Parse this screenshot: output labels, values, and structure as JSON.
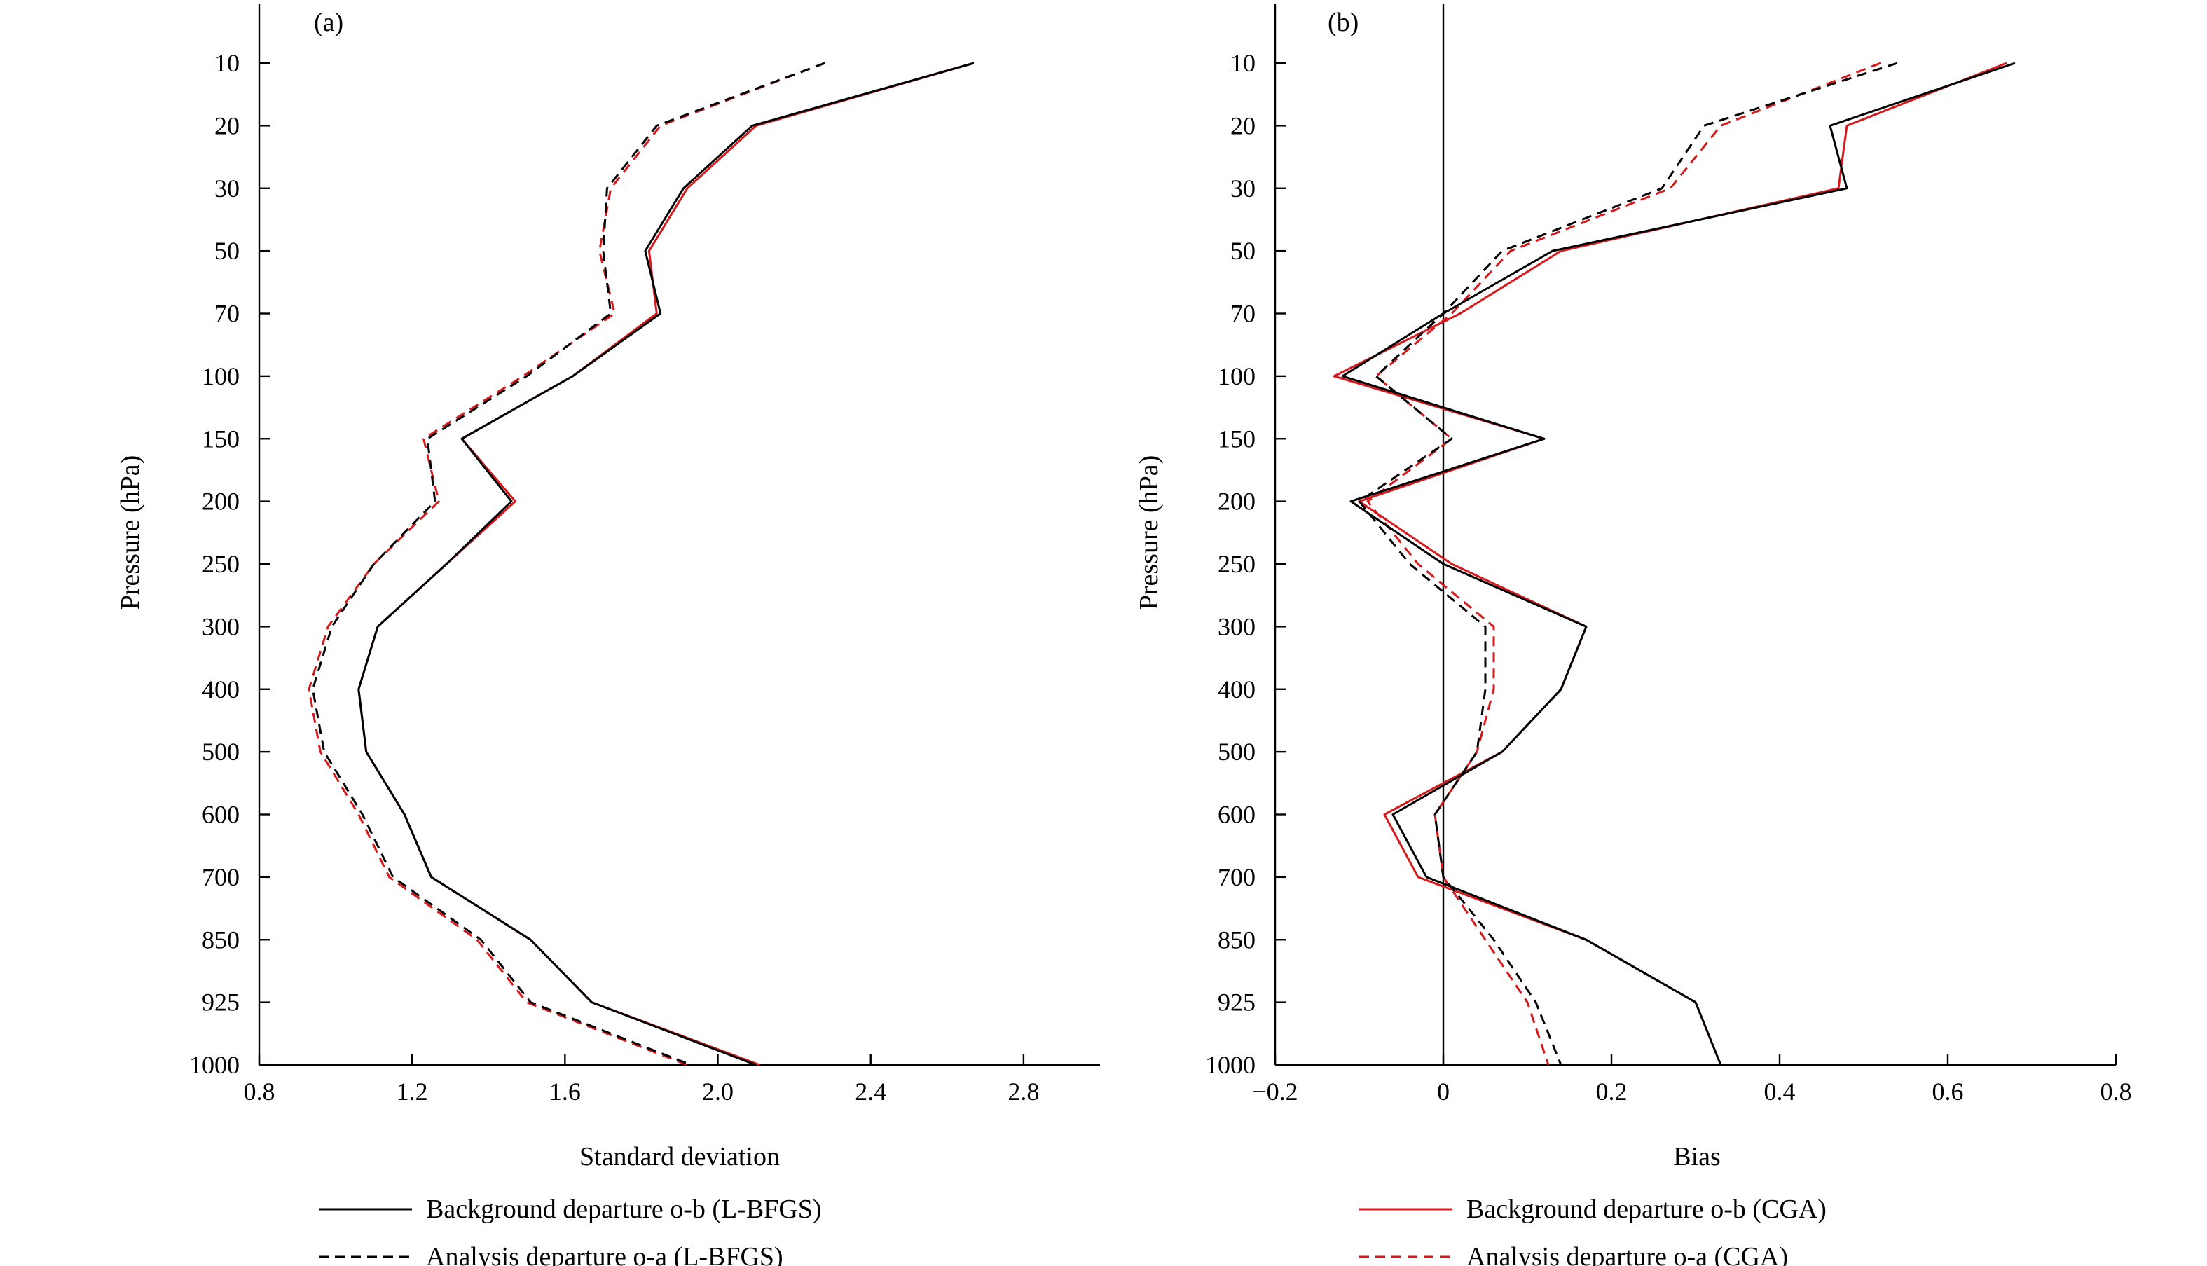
{
  "colors": {
    "lbfgs": "#000000",
    "cga": "#d7191c"
  },
  "legend": [
    {
      "name": "Background departure o-b (L-BFGS)",
      "color": "#000000",
      "dash": false
    },
    {
      "name": "Analysis departure o-a (L-BFGS)",
      "color": "#000000",
      "dash": true
    },
    {
      "name": "Background departure o-b (CGA)",
      "color": "#d7191c",
      "dash": false
    },
    {
      "name": "Analysis departure o-a (CGA)",
      "color": "#d7191c",
      "dash": true
    }
  ],
  "chart_data": [
    {
      "type": "line",
      "panel_label": "(a)",
      "xlabel": "Standard deviation",
      "ylabel": "Pressure (hPa)",
      "xlim": [
        0.8,
        3.0
      ],
      "xticks": [
        "0.8",
        "1.2",
        "1.6",
        "2.0",
        "2.4",
        "2.8"
      ],
      "xtick_values": [
        0.8,
        1.2,
        1.6,
        2.0,
        2.4,
        2.8
      ],
      "levels": [
        "10",
        "20",
        "30",
        "50",
        "70",
        "100",
        "150",
        "200",
        "250",
        "300",
        "400",
        "500",
        "600",
        "700",
        "850",
        "925",
        "1000"
      ],
      "series": [
        {
          "name": "Background departure o-b (CGA)",
          "color": "#d7191c",
          "dash": false,
          "values": [
            2.67,
            2.1,
            1.92,
            1.82,
            1.84,
            1.62,
            1.33,
            1.47,
            1.29,
            1.11,
            1.06,
            1.08,
            1.18,
            1.25,
            1.51,
            1.67,
            2.11
          ]
        },
        {
          "name": "Analysis departure o-a (CGA)",
          "color": "#d7191c",
          "dash": true,
          "values": [
            2.28,
            1.85,
            1.72,
            1.69,
            1.73,
            1.49,
            1.23,
            1.27,
            1.1,
            0.98,
            0.93,
            0.96,
            1.06,
            1.14,
            1.37,
            1.5,
            1.92
          ]
        },
        {
          "name": "Background departure o-b (L-BFGS)",
          "color": "#000000",
          "dash": false,
          "values": [
            2.67,
            2.09,
            1.91,
            1.81,
            1.85,
            1.62,
            1.33,
            1.46,
            1.29,
            1.11,
            1.06,
            1.08,
            1.18,
            1.25,
            1.51,
            1.67,
            2.1
          ]
        },
        {
          "name": "Analysis departure o-a (L-BFGS)",
          "color": "#000000",
          "dash": true,
          "values": [
            2.28,
            1.84,
            1.71,
            1.7,
            1.72,
            1.5,
            1.24,
            1.26,
            1.1,
            0.99,
            0.94,
            0.97,
            1.07,
            1.15,
            1.38,
            1.51,
            1.93
          ]
        }
      ]
    },
    {
      "type": "line",
      "panel_label": "(b)",
      "xlabel": "Bias",
      "ylabel": "Pressure (hPa)",
      "xlim": [
        -0.2,
        0.8
      ],
      "xticks": [
        "−0.2",
        "0",
        "0.2",
        "0.4",
        "0.6",
        "0.8"
      ],
      "xtick_values": [
        -0.2,
        0,
        0.2,
        0.4,
        0.6,
        0.8
      ],
      "zero_line": 0,
      "levels": [
        "10",
        "20",
        "30",
        "50",
        "70",
        "100",
        "150",
        "200",
        "250",
        "300",
        "400",
        "500",
        "600",
        "700",
        "850",
        "925",
        "1000"
      ],
      "series": [
        {
          "name": "Background departure o-b (CGA)",
          "color": "#d7191c",
          "dash": false,
          "values": [
            0.67,
            0.48,
            0.47,
            0.14,
            0.02,
            -0.13,
            0.12,
            -0.1,
            0.01,
            0.17,
            0.14,
            0.07,
            -0.07,
            -0.03,
            0.17,
            0.3,
            0.33
          ]
        },
        {
          "name": "Analysis departure o-a (CGA)",
          "color": "#d7191c",
          "dash": true,
          "values": [
            0.52,
            0.33,
            0.27,
            0.08,
            0.01,
            -0.08,
            0.01,
            -0.09,
            -0.03,
            0.06,
            0.06,
            0.04,
            -0.01,
            0.0,
            0.05,
            0.1,
            0.125
          ]
        },
        {
          "name": "Background departure o-b (L-BFGS)",
          "color": "#000000",
          "dash": false,
          "values": [
            0.68,
            0.46,
            0.48,
            0.13,
            0.0,
            -0.12,
            0.12,
            -0.11,
            0.0,
            0.17,
            0.14,
            0.07,
            -0.06,
            -0.02,
            0.17,
            0.3,
            0.33
          ]
        },
        {
          "name": "Analysis departure o-a (L-BFGS)",
          "color": "#000000",
          "dash": true,
          "values": [
            0.54,
            0.31,
            0.26,
            0.07,
            0.0,
            -0.08,
            0.01,
            -0.1,
            -0.04,
            0.05,
            0.05,
            0.04,
            -0.01,
            0.0,
            0.06,
            0.11,
            0.14
          ]
        }
      ]
    }
  ]
}
